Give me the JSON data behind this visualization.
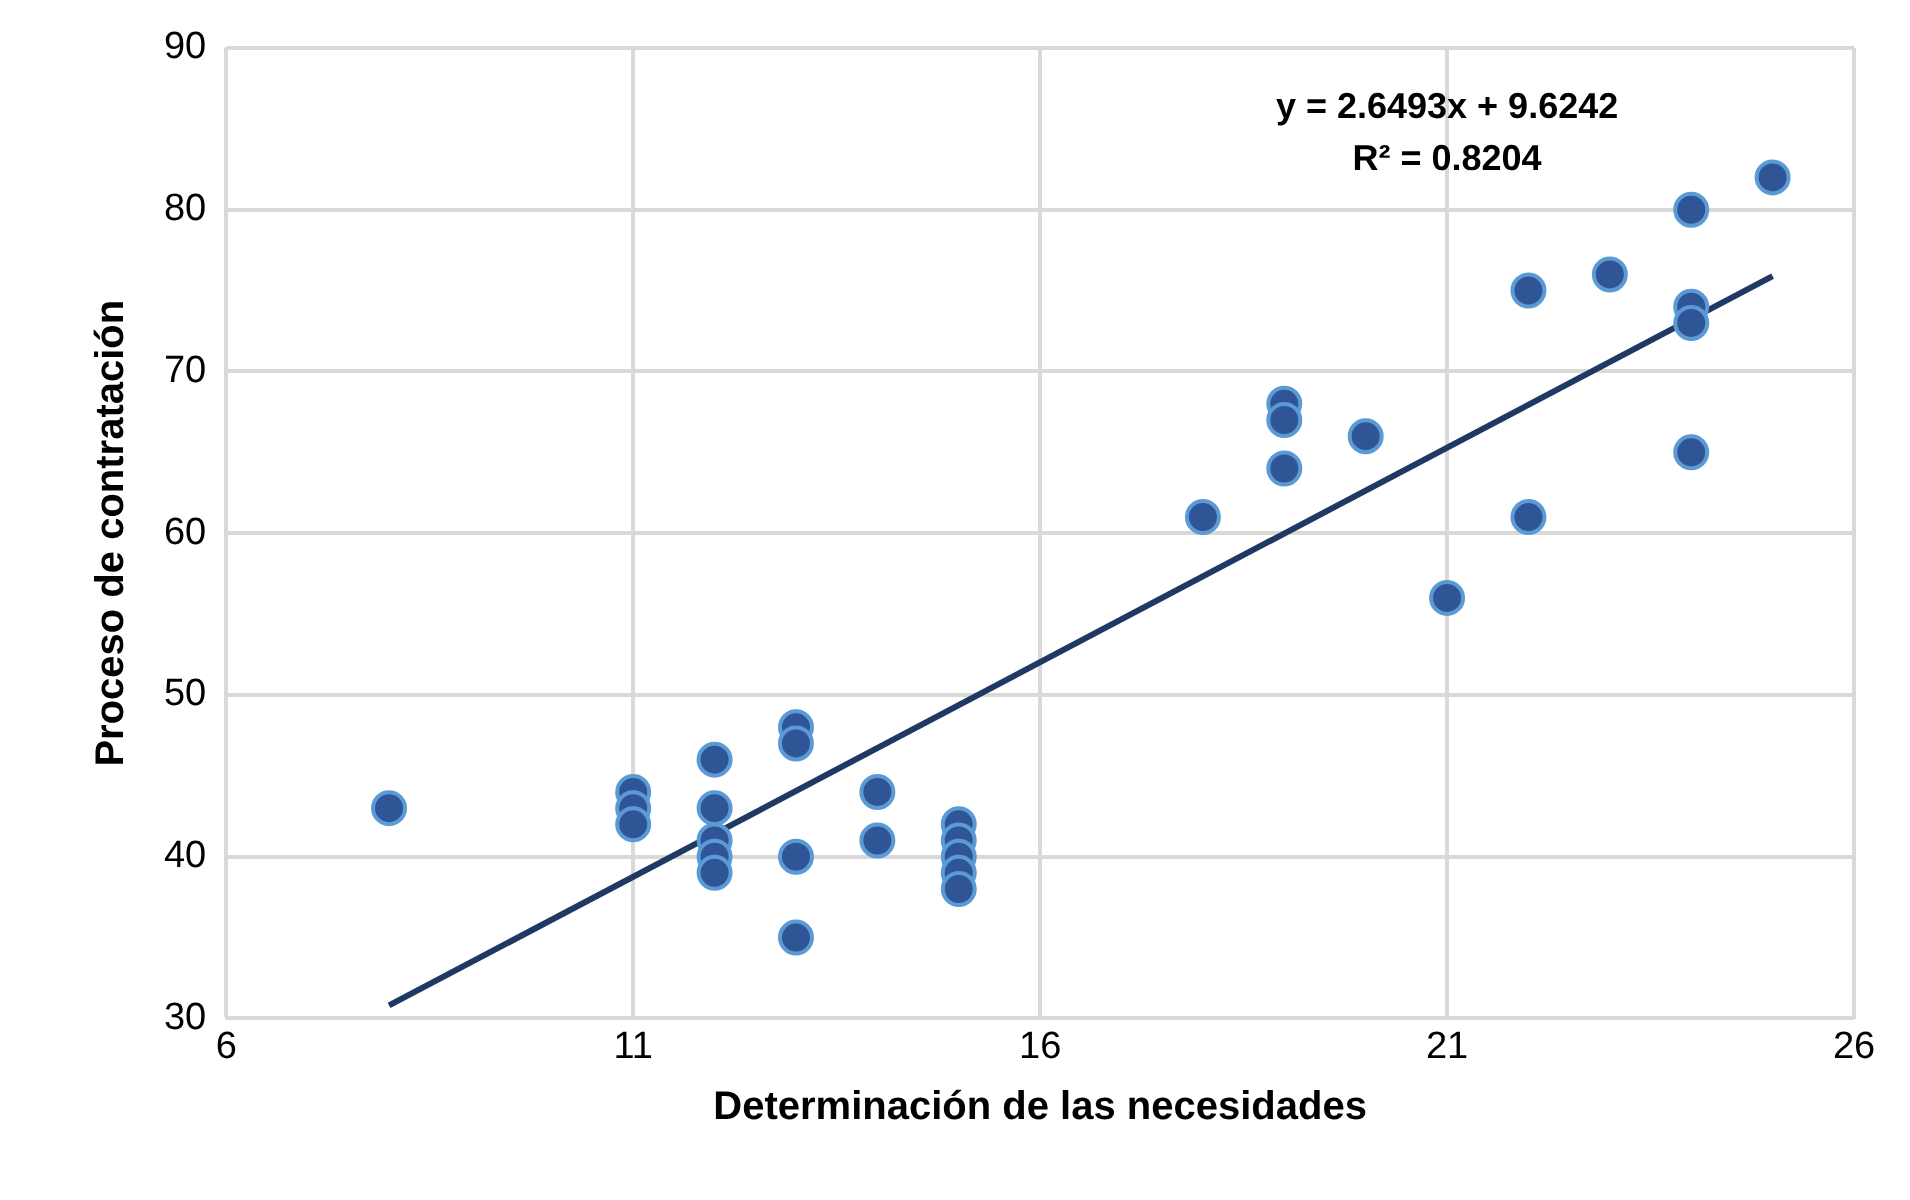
{
  "chart_data": {
    "type": "scatter",
    "xlabel": "Determinación de las necesidades",
    "ylabel": "Proceso de contratación",
    "xlim": [
      6,
      26
    ],
    "xticks": [
      6,
      11,
      16,
      21,
      26
    ],
    "ylim": [
      30,
      90
    ],
    "yticks": [
      30,
      40,
      50,
      60,
      70,
      80,
      90
    ],
    "grid": true,
    "legend": false,
    "marker": "circle",
    "annotations": [
      "y = 2.6493x + 9.6242",
      "R² = 0.8204"
    ],
    "series": [
      {
        "type": "scatter",
        "color": "#2f5597",
        "x": [
          8,
          11,
          11,
          11,
          12,
          12,
          12,
          12,
          12,
          13,
          13,
          13,
          13,
          14,
          14,
          15,
          15,
          15,
          15,
          15,
          18,
          19,
          19,
          19,
          20,
          21,
          22,
          22,
          23,
          24,
          24,
          24,
          24,
          25
        ],
        "values": [
          43,
          44,
          43,
          42,
          46,
          43,
          41,
          40,
          39,
          48,
          47,
          40,
          35,
          44,
          41,
          42,
          41,
          40,
          39,
          38,
          61,
          68,
          67,
          64,
          66,
          56,
          75,
          61,
          76,
          80,
          74,
          73,
          65,
          82
        ]
      },
      {
        "type": "line",
        "color": "#203864",
        "x": [
          8,
          25
        ],
        "values": [
          30.8,
          75.9
        ],
        "marker": "none"
      }
    ]
  }
}
